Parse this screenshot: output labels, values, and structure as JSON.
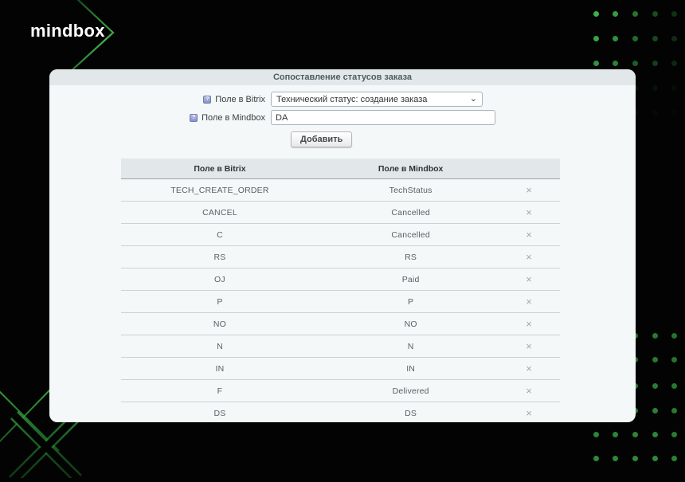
{
  "brand": {
    "logo_text": "mindbox"
  },
  "colors": {
    "background": "#020302",
    "accent_green": "#3cb14a",
    "accent_green_dark": "#155d22",
    "panel_bg": "#f4f8f8",
    "panel_header_bg": "#e2e8e9"
  },
  "icons": {
    "help": "?",
    "select_chevron": "⌄",
    "remove": "×"
  },
  "panel": {
    "title": "Сопоставление статусов заказа",
    "form": {
      "bitrix_label": "Поле в Bitrix",
      "bitrix_selected_option": "Технический статус: создание заказа",
      "mindbox_label": "Поле в Mindbox",
      "mindbox_value": "DA",
      "add_button_label": "Добавить"
    },
    "table": {
      "columns": [
        "Поле в Bitrix",
        "Поле в Mindbox"
      ],
      "rows": [
        {
          "bitrix": "TECH_CREATE_ORDER",
          "mindbox": "TechStatus"
        },
        {
          "bitrix": "CANCEL",
          "mindbox": "Cancelled"
        },
        {
          "bitrix": "C",
          "mindbox": "Cancelled"
        },
        {
          "bitrix": "RS",
          "mindbox": "RS"
        },
        {
          "bitrix": "OJ",
          "mindbox": "Paid"
        },
        {
          "bitrix": "P",
          "mindbox": "P"
        },
        {
          "bitrix": "NO",
          "mindbox": "NO"
        },
        {
          "bitrix": "N",
          "mindbox": "N"
        },
        {
          "bitrix": "IN",
          "mindbox": "IN"
        },
        {
          "bitrix": "F",
          "mindbox": "Delivered"
        },
        {
          "bitrix": "DS",
          "mindbox": "DS"
        }
      ]
    }
  }
}
